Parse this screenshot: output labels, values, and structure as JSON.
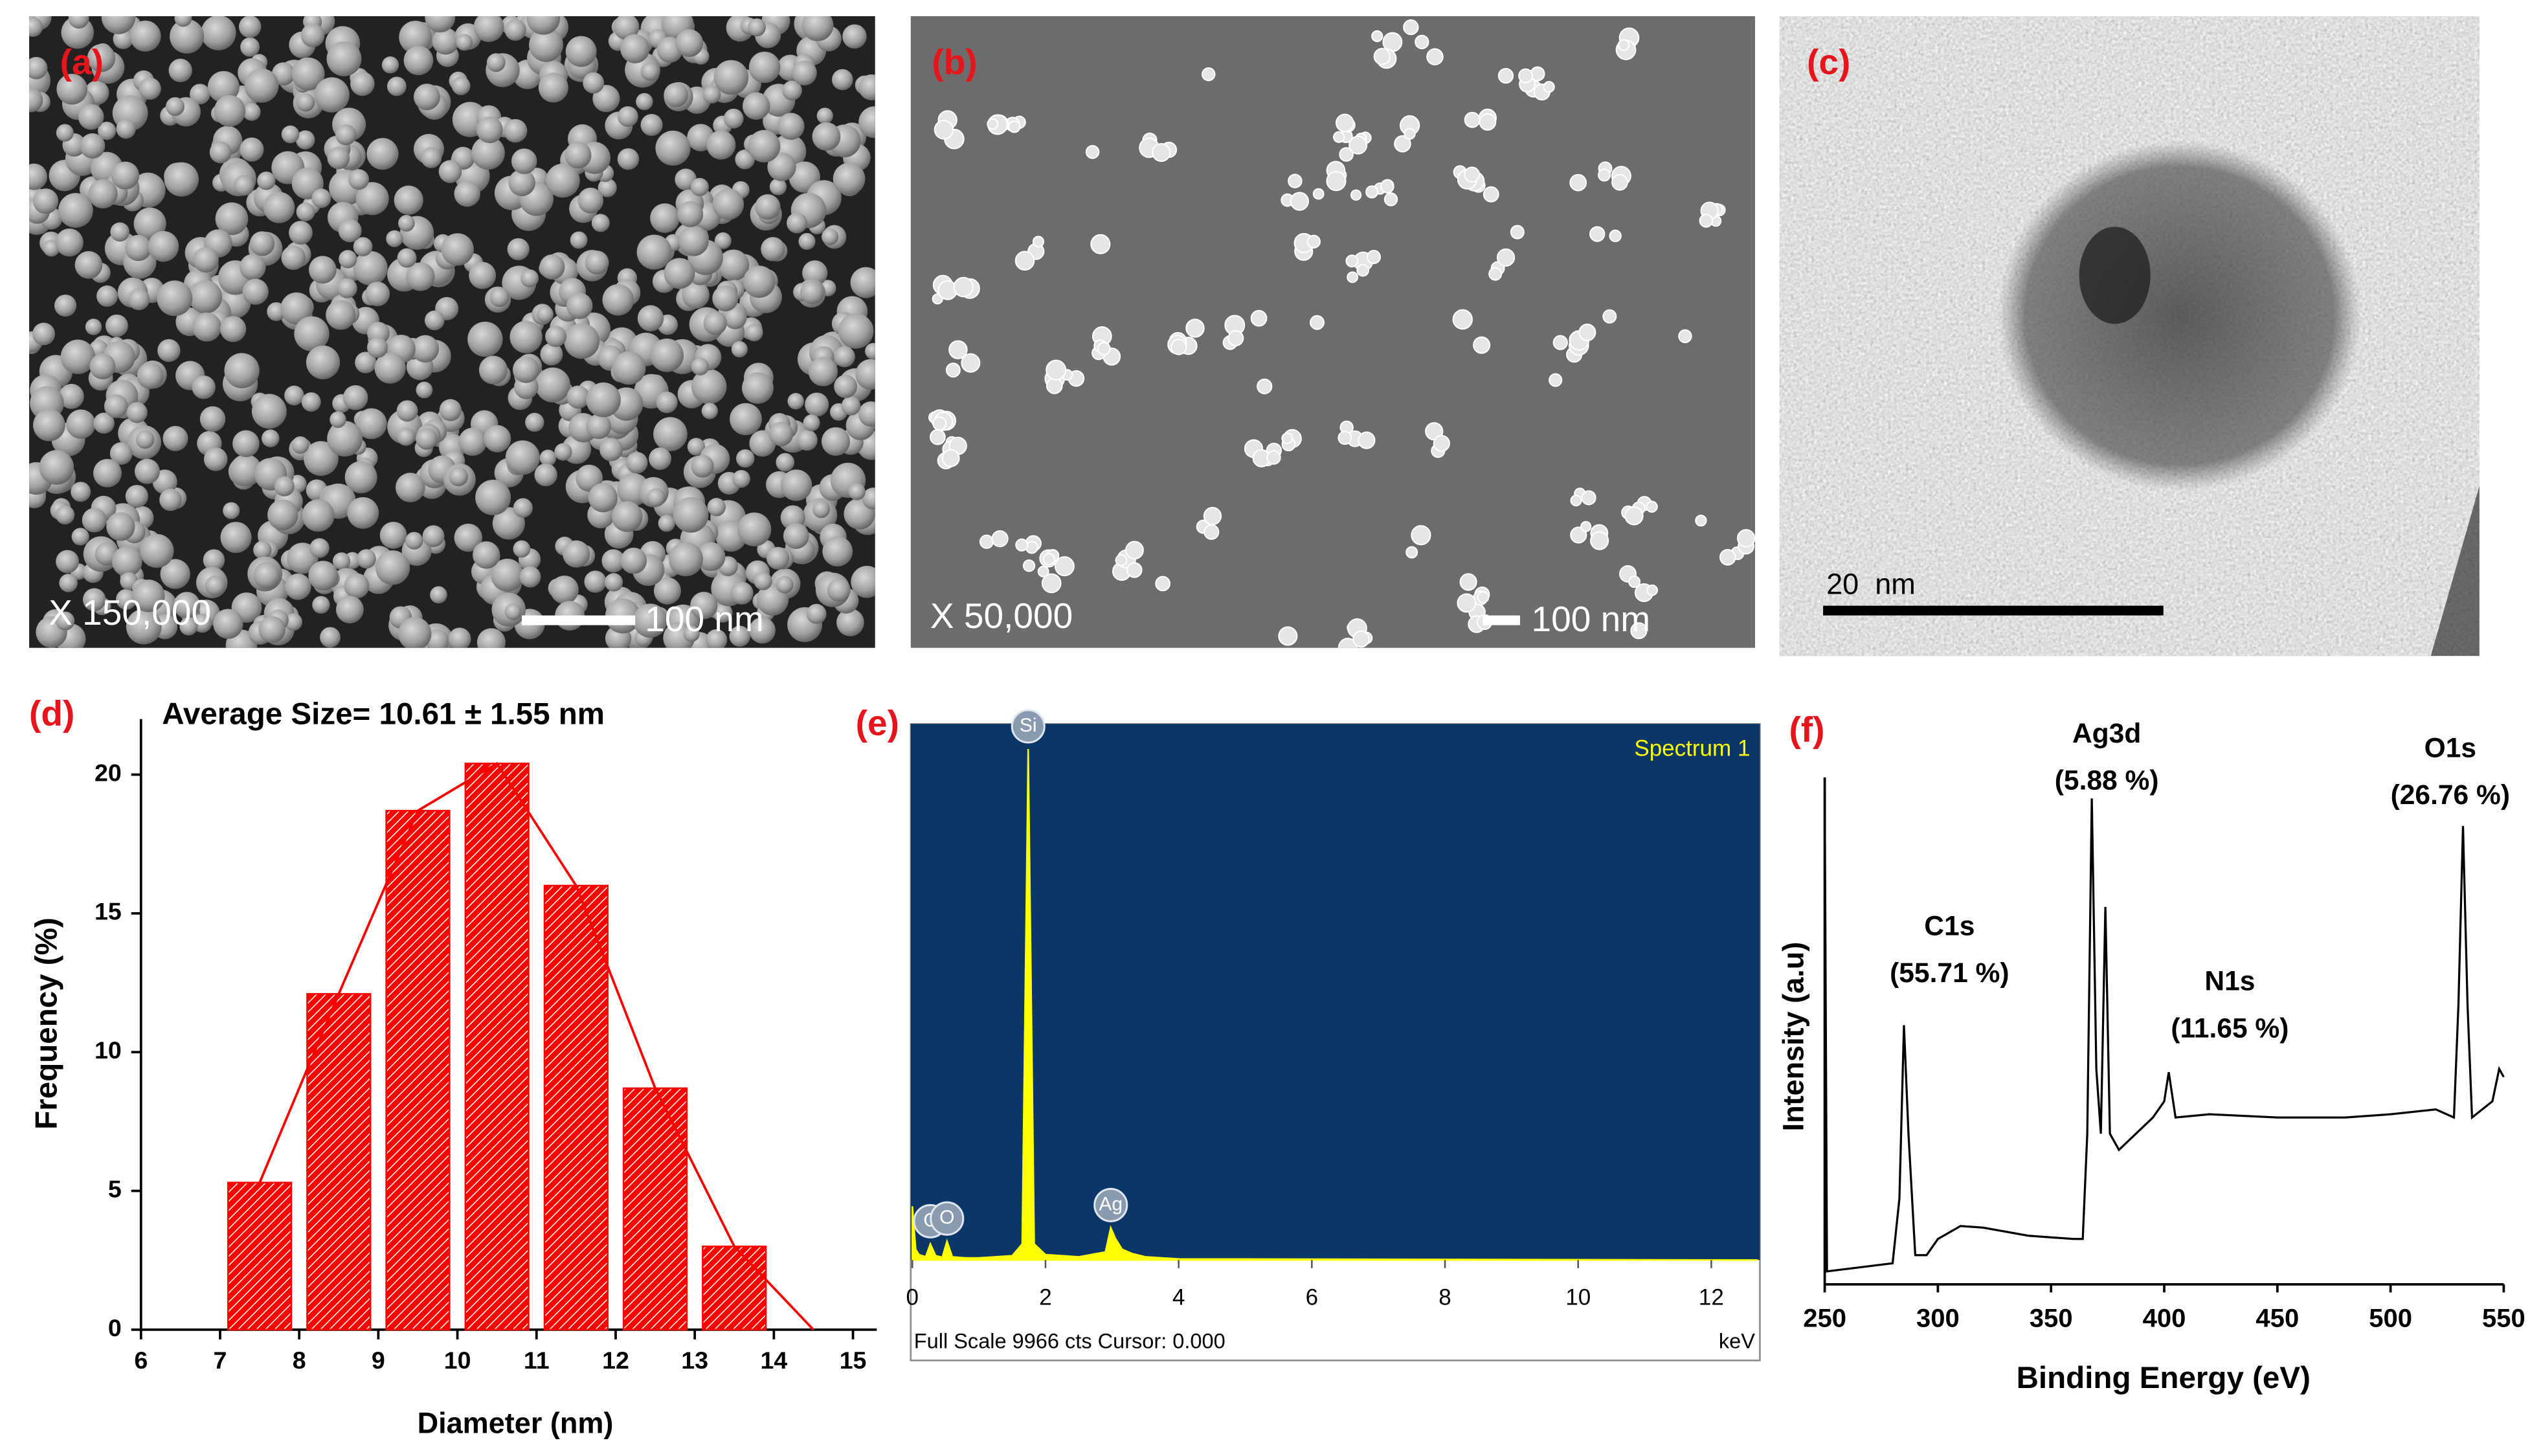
{
  "images": [
    {
      "label": "(a)",
      "magnification": "X 150,000",
      "scale_bar": "100 nm"
    },
    {
      "label": "(b)",
      "magnification": "X 50,000",
      "scale_bar": "100 nm"
    },
    {
      "label": "(c)",
      "scale_bar": "20  nm"
    }
  ],
  "chart_data": [
    {
      "type": "bar",
      "label": "(d)",
      "title": "Average Size= 10.61 ± 1.55 nm",
      "xlabel": "Diameter (nm)",
      "ylabel": "Frequency (%)",
      "x": [
        7.5,
        8.5,
        9.5,
        10.5,
        11.5,
        12.5,
        13.5
      ],
      "values": [
        5.3,
        12.1,
        18.7,
        20.4,
        16,
        8.7,
        3
      ],
      "color": "#ff0000",
      "line": {
        "x": [
          7.5,
          8.5,
          9.5,
          10.5,
          11.5,
          12.5,
          13.5,
          14.5
        ],
        "values": [
          5.3,
          12.1,
          18.7,
          20.4,
          16,
          8.7,
          3,
          0
        ],
        "color": "#ff0000"
      },
      "xlim": [
        6,
        15.3
      ],
      "ylim": [
        0,
        22
      ],
      "xticks": [
        6,
        7,
        8,
        9,
        10,
        11,
        12,
        13,
        14,
        15
      ],
      "yticks": [
        0,
        5,
        10,
        15,
        20
      ]
    },
    {
      "type": "area",
      "label": "(e)",
      "legend": "Spectrum 1",
      "footer": "Full Scale 9966 cts Cursor: 0.000",
      "xunit": "keV",
      "x": [
        0,
        0.05,
        0.1,
        0.2,
        0.27,
        0.35,
        0.45,
        0.52,
        0.6,
        0.8,
        1.0,
        1.5,
        1.65,
        1.74,
        1.83,
        2.0,
        2.5,
        2.9,
        2.98,
        3.05,
        3.15,
        3.3,
        3.5,
        4,
        12.7
      ],
      "values": [
        1000,
        200,
        100,
        60,
        300,
        80,
        50,
        350,
        60,
        40,
        40,
        80,
        300,
        9500,
        300,
        100,
        60,
        150,
        600,
        400,
        200,
        120,
        60,
        20,
        0
      ],
      "color": "#ffff00",
      "background": "#0b3668",
      "xlim": [
        0,
        12.73
      ],
      "ylim": [
        0,
        9966
      ],
      "xticks": [
        0,
        2,
        4,
        6,
        8,
        10,
        12
      ],
      "peaks": [
        {
          "label": "C",
          "x": 0.27
        },
        {
          "label": "O",
          "x": 0.52
        },
        {
          "label": "Si",
          "x": 1.74
        },
        {
          "label": "Ag",
          "x": 2.98
        }
      ]
    },
    {
      "type": "line",
      "label": "(f)",
      "xlabel": "Binding Energy (eV)",
      "ylabel": "Intensity (a.u)",
      "x": [
        250,
        251,
        280,
        283,
        285,
        287,
        290,
        295,
        300,
        310,
        320,
        340,
        360,
        364,
        366,
        368,
        370,
        372,
        374,
        376,
        380,
        395,
        400,
        402,
        405,
        420,
        450,
        480,
        500,
        520,
        528,
        530,
        532,
        534,
        536,
        545,
        548,
        550
      ],
      "values": [
        303,
        8,
        13,
        53,
        160,
        93,
        18,
        18,
        28,
        36,
        35,
        30,
        28,
        28,
        93,
        300,
        133,
        93,
        233,
        93,
        83,
        103,
        113,
        131,
        103,
        105,
        103,
        103,
        105,
        108,
        103,
        173,
        283,
        173,
        103,
        113,
        133,
        128
      ],
      "color": "#000000",
      "xlim": [
        250,
        550
      ],
      "ylim": [
        0,
        313
      ],
      "xticks": [
        250,
        300,
        350,
        400,
        450,
        500,
        550
      ],
      "annotations": [
        {
          "name": "C1s",
          "percent": "(55.71 %)"
        },
        {
          "name": "Ag3d",
          "percent": "(5.88 %)"
        },
        {
          "name": "N1s",
          "percent": "(11.65 %)"
        },
        {
          "name": "O1s",
          "percent": "(26.76 %)"
        }
      ]
    }
  ]
}
